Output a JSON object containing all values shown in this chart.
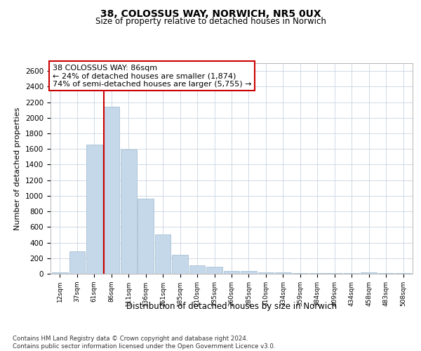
{
  "title1": "38, COLOSSUS WAY, NORWICH, NR5 0UX",
  "title2": "Size of property relative to detached houses in Norwich",
  "xlabel": "Distribution of detached houses by size in Norwich",
  "ylabel": "Number of detached properties",
  "categories": [
    "12sqm",
    "37sqm",
    "61sqm",
    "86sqm",
    "111sqm",
    "136sqm",
    "161sqm",
    "185sqm",
    "210sqm",
    "235sqm",
    "260sqm",
    "285sqm",
    "310sqm",
    "334sqm",
    "359sqm",
    "384sqm",
    "409sqm",
    "434sqm",
    "458sqm",
    "483sqm",
    "508sqm"
  ],
  "values": [
    20,
    290,
    1660,
    2140,
    1590,
    960,
    500,
    245,
    110,
    90,
    35,
    35,
    20,
    15,
    10,
    10,
    10,
    5,
    20,
    5,
    5
  ],
  "bar_color": "#c5d8ea",
  "bar_edge_color": "#9bb8cc",
  "red_line_index": 3,
  "red_line_color": "#cc0000",
  "annotation_title": "38 COLOSSUS WAY: 86sqm",
  "annotation_line1": "← 24% of detached houses are smaller (1,874)",
  "annotation_line2": "74% of semi-detached houses are larger (5,755) →",
  "ylim": [
    0,
    2700
  ],
  "yticks": [
    0,
    200,
    400,
    600,
    800,
    1000,
    1200,
    1400,
    1600,
    1800,
    2000,
    2200,
    2400,
    2600
  ],
  "footer1": "Contains HM Land Registry data © Crown copyright and database right 2024.",
  "footer2": "Contains public sector information licensed under the Open Government Licence v3.0.",
  "bg_color": "#ffffff",
  "grid_color": "#c8d4e0"
}
